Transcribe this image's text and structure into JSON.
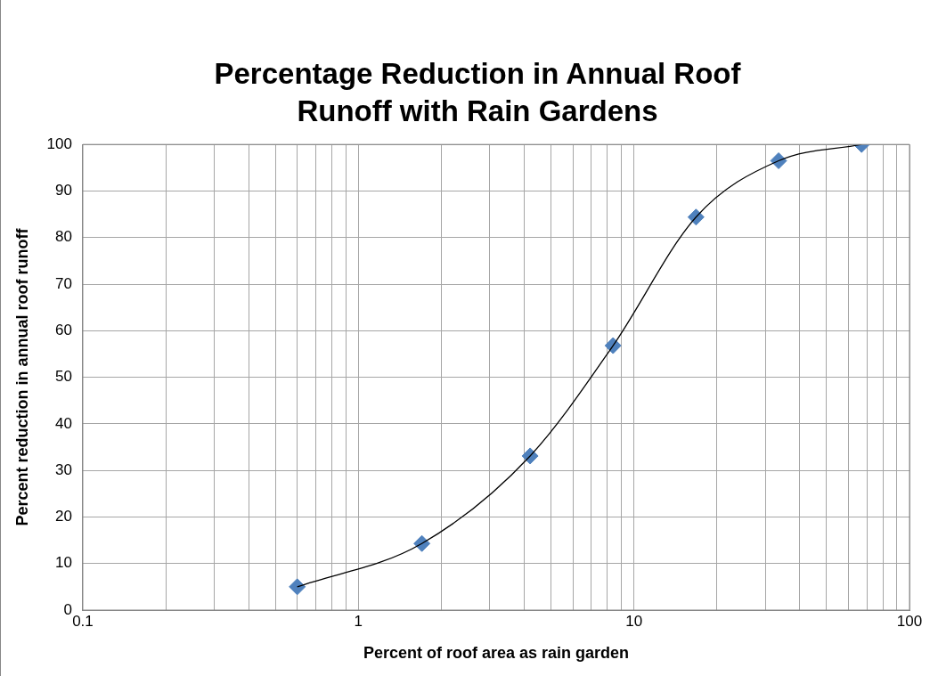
{
  "chart_data": {
    "type": "scatter",
    "title": "Percentage Reduction in Annual Roof Runoff with Rain Gardens",
    "xlabel": "Percent of roof area as rain garden",
    "ylabel": "Percent reduction in annual roof runoff",
    "log": "x",
    "grid": true,
    "legend": false,
    "series": [
      {
        "type": "line",
        "color": "#000000",
        "marker": "none",
        "x": [
          0.6,
          1.7,
          4.2,
          8.4,
          16.8,
          33.5,
          67
        ],
        "values": [
          5,
          14.3,
          33.1,
          56.8,
          84.4,
          96.5,
          100
        ]
      },
      {
        "type": "scatter",
        "color": "#4f81bd",
        "marker": "diamond",
        "x": [
          0.6,
          1.7,
          4.2,
          8.4,
          16.8,
          33.5,
          67
        ],
        "values": [
          5,
          14.3,
          33.1,
          56.8,
          84.4,
          96.5,
          100
        ]
      }
    ],
    "xlim": [
      0.1,
      100
    ],
    "xticks": [
      0.1,
      {
        "value": 0.2,
        "label": null
      },
      {
        "value": 0.3,
        "label": null
      },
      {
        "value": 0.4,
        "label": null
      },
      {
        "value": 0.5,
        "label": null
      },
      {
        "value": 0.6,
        "label": null
      },
      {
        "value": 0.7,
        "label": null
      },
      {
        "value": 0.8,
        "label": null
      },
      {
        "value": 0.9,
        "label": null
      },
      1,
      {
        "value": 2,
        "label": null
      },
      {
        "value": 3,
        "label": null
      },
      {
        "value": 4,
        "label": null
      },
      {
        "value": 5,
        "label": null
      },
      {
        "value": 6,
        "label": null
      },
      {
        "value": 7,
        "label": null
      },
      {
        "value": 8,
        "label": null
      },
      {
        "value": 9,
        "label": null
      },
      10,
      {
        "value": 20,
        "label": null
      },
      {
        "value": 30,
        "label": null
      },
      {
        "value": 40,
        "label": null
      },
      {
        "value": 50,
        "label": null
      },
      {
        "value": 60,
        "label": null
      },
      {
        "value": 70,
        "label": null
      },
      {
        "value": 80,
        "label": null
      },
      {
        "value": 90,
        "label": null
      },
      100
    ],
    "ylim": [
      0,
      100
    ],
    "yticks": [
      0,
      10,
      20,
      30,
      40,
      50,
      60,
      70,
      80,
      90,
      100
    ]
  }
}
